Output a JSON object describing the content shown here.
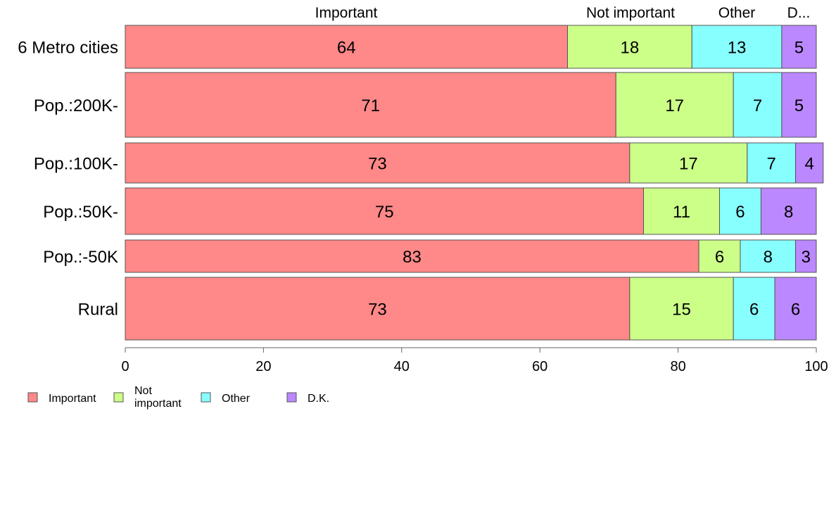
{
  "chart_data": {
    "type": "bar",
    "orientation": "horizontal",
    "stacked": true,
    "categories": [
      "6 Metro cities",
      "Pop.:200K-",
      "Pop.:100K-",
      "Pop.:50K-",
      "Pop.:-50K",
      "Rural"
    ],
    "series": [
      {
        "name": "Important",
        "values": [
          64,
          71,
          73,
          75,
          83,
          73
        ]
      },
      {
        "name": "Not important",
        "values": [
          18,
          17,
          17,
          11,
          6,
          15
        ]
      },
      {
        "name": "Other",
        "values": [
          13,
          7,
          7,
          6,
          8,
          6
        ]
      },
      {
        "name": "D.K.",
        "values": [
          5,
          5,
          4,
          8,
          3,
          6
        ]
      }
    ],
    "top_labels": [
      "Important",
      "Not important",
      "Other",
      "D..."
    ],
    "legend_labels": [
      "Important",
      "Not\nimportant",
      "Other",
      "D.K."
    ],
    "legend_placement": "bottom-left",
    "xlim": [
      0,
      100
    ],
    "x_ticks": [
      "0",
      "20",
      "40",
      "60",
      "80",
      "100"
    ],
    "colors": [
      "#ff8888",
      "#ccff88",
      "#88ffff",
      "#bb88ff"
    ],
    "grid": false
  }
}
